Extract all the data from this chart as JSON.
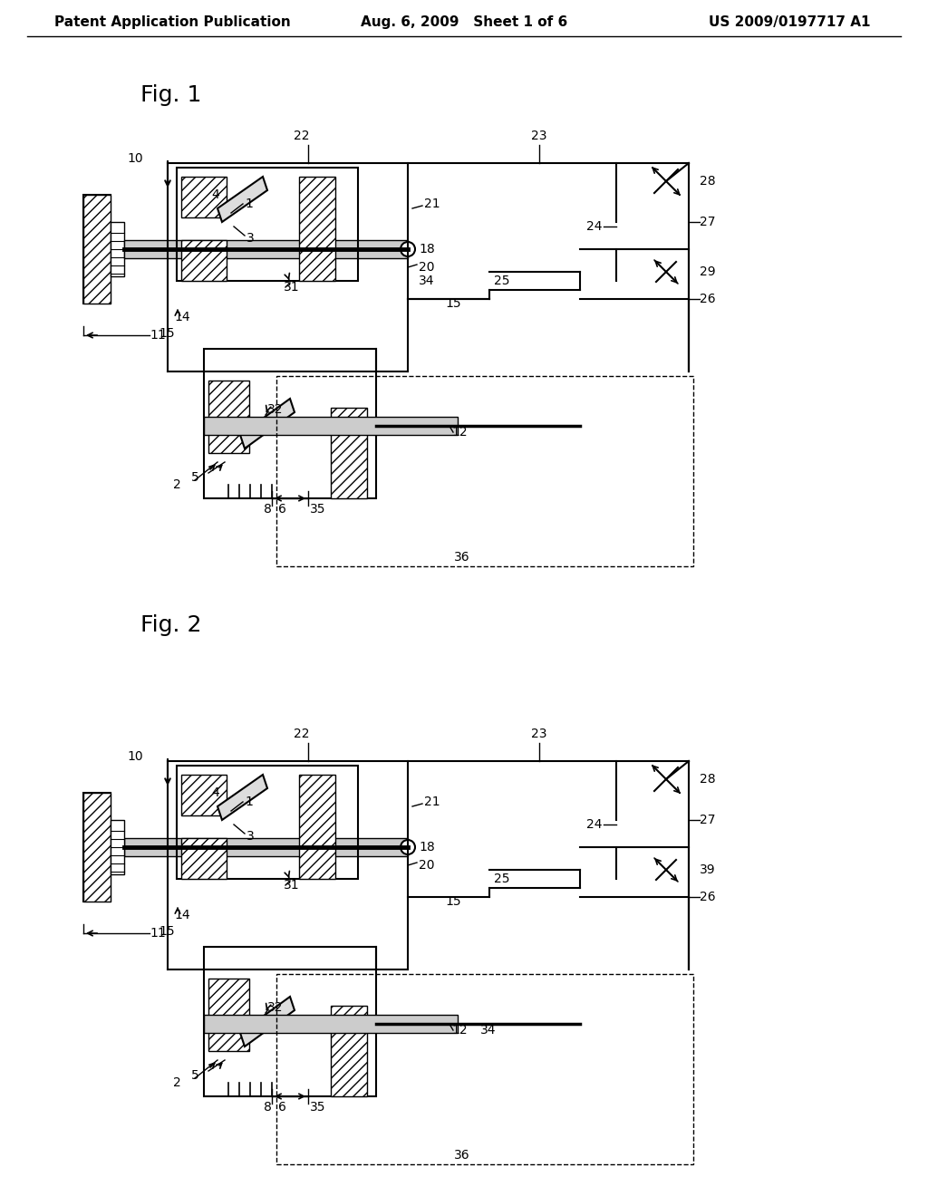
{
  "bg_color": "#ffffff",
  "text_color": "#000000",
  "line_color": "#000000",
  "header_left": "Patent Application Publication",
  "header_center": "Aug. 6, 2009   Sheet 1 of 6",
  "header_right": "US 2009/0197717 A1",
  "fig1_title": "Fig. 1",
  "fig2_title": "Fig. 2",
  "font_size_header": 11,
  "font_size_fig_title": 18,
  "font_size_labels": 10
}
